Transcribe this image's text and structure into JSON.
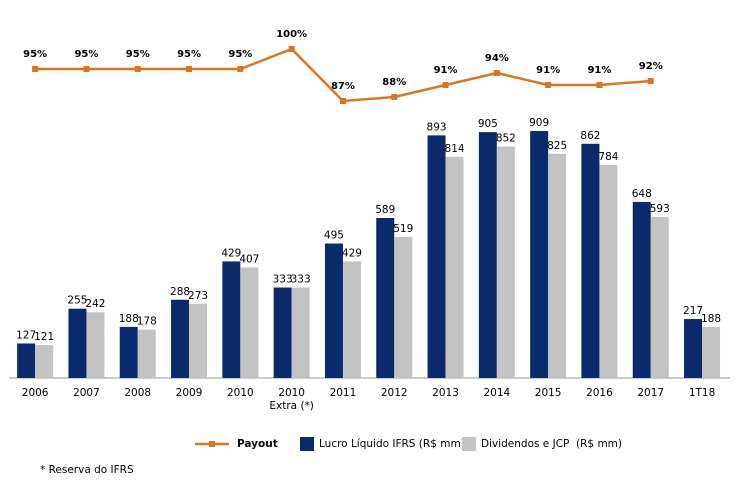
{
  "chart_data": {
    "type": "bar",
    "categories": [
      "2006",
      "2007",
      "2008",
      "2009",
      "2010",
      "2010\nExtra (*)",
      "2011",
      "2012",
      "2013",
      "2014",
      "2015",
      "2016",
      "2017",
      "1T18"
    ],
    "series": [
      {
        "name": "Lucro Líquido IFRS (R$ mm)",
        "color": "#0b2a6b",
        "values": [
          127,
          255,
          188,
          288,
          429,
          333,
          495,
          589,
          893,
          905,
          909,
          862,
          648,
          217
        ]
      },
      {
        "name": "Dividendos e JCP  (R$ mm)",
        "color": "#c3c3c3",
        "values": [
          121,
          242,
          178,
          273,
          407,
          333,
          429,
          519,
          814,
          852,
          825,
          784,
          593,
          188
        ]
      },
      {
        "name": "Payout",
        "type": "line",
        "axis": "y2",
        "color": "#e07320",
        "values": [
          95,
          95,
          95,
          95,
          95,
          100,
          87,
          88,
          91,
          94,
          91,
          91,
          92,
          null
        ],
        "value_labels": [
          "95%",
          "95%",
          "95%",
          "95%",
          "95%",
          "100%",
          "87%",
          "88%",
          "91%",
          "94%",
          "91%",
          "91%",
          "92%",
          null
        ]
      }
    ],
    "ylim": [
      0,
      1000
    ],
    "y2lim": [
      80,
      100
    ],
    "grid": false,
    "footnote": "* Reserva do IFRS"
  }
}
